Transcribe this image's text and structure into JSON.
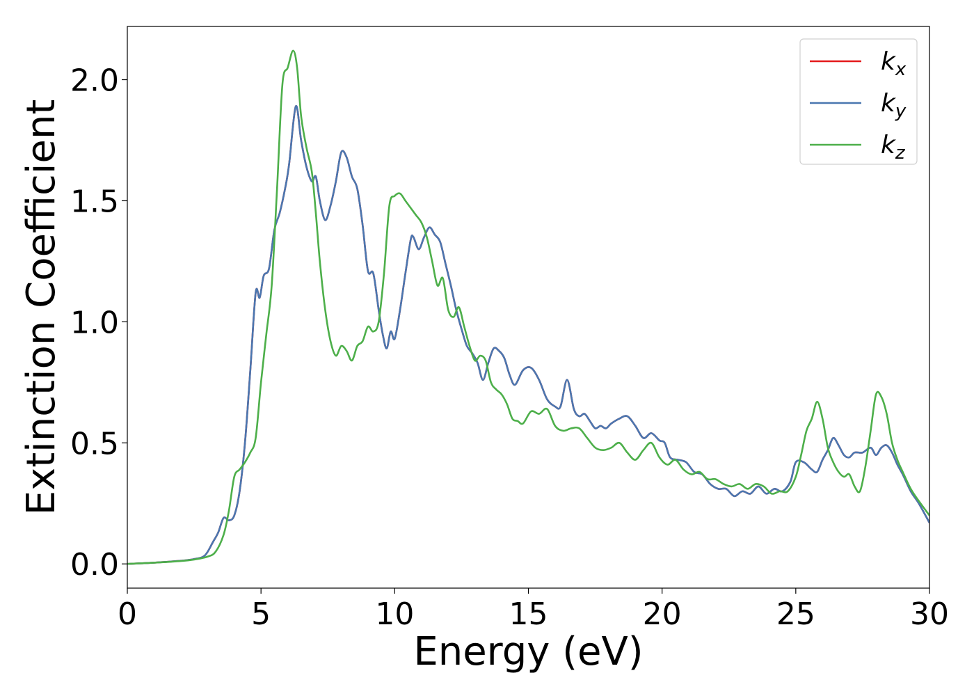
{
  "chart_data": {
    "type": "line",
    "xlabel": "Energy (eV)",
    "ylabel": "Extinction Coefficient",
    "xlim": [
      0,
      30
    ],
    "ylim": [
      -0.1,
      2.22
    ],
    "xticks": [
      0,
      5,
      10,
      15,
      20,
      25,
      30
    ],
    "xtick_labels": [
      "0",
      "5",
      "10",
      "15",
      "20",
      "25",
      "30"
    ],
    "yticks": [
      0.0,
      0.5,
      1.0,
      1.5,
      2.0
    ],
    "ytick_labels": [
      "0.0",
      "0.5",
      "1.0",
      "1.5",
      "2.0"
    ],
    "grid": false,
    "legend_position": "top-right",
    "series": [
      {
        "name": "k_x",
        "legend_main": "k",
        "legend_sub": "x",
        "color": "#e41a1c",
        "x": [
          0,
          1,
          2,
          2.5,
          2.9,
          3.2,
          3.4,
          3.6,
          3.8,
          4.0,
          4.2,
          4.4,
          4.6,
          4.8,
          4.95,
          5.1,
          5.3,
          5.5,
          5.7,
          5.9,
          6.05,
          6.3,
          6.5,
          6.7,
          6.9,
          7.05,
          7.2,
          7.4,
          7.6,
          7.8,
          8.0,
          8.2,
          8.4,
          8.6,
          8.8,
          9.0,
          9.2,
          9.4,
          9.55,
          9.7,
          9.85,
          10.0,
          10.2,
          10.4,
          10.6,
          10.7,
          10.9,
          11.1,
          11.3,
          11.5,
          11.7,
          11.9,
          12.1,
          12.3,
          12.5,
          12.7,
          12.9,
          13.1,
          13.3,
          13.5,
          13.7,
          13.9,
          14.1,
          14.3,
          14.5,
          14.8,
          15.1,
          15.4,
          15.7,
          16.0,
          16.2,
          16.45,
          16.7,
          16.9,
          17.1,
          17.3,
          17.5,
          17.7,
          17.9,
          18.1,
          18.4,
          18.7,
          19.0,
          19.3,
          19.6,
          19.9,
          20.1,
          20.3,
          20.6,
          20.9,
          21.2,
          21.5,
          21.8,
          22.1,
          22.4,
          22.7,
          23.0,
          23.3,
          23.6,
          23.9,
          24.2,
          24.5,
          24.8,
          25.0,
          25.3,
          25.6,
          25.8,
          26.0,
          26.2,
          26.4,
          26.6,
          26.8,
          27.0,
          27.2,
          27.5,
          27.8,
          28.0,
          28.2,
          28.4,
          28.6,
          28.8,
          29.0,
          29.3,
          29.6,
          30.0
        ],
        "y": [
          0.0,
          0.005,
          0.013,
          0.02,
          0.035,
          0.09,
          0.13,
          0.19,
          0.18,
          0.2,
          0.3,
          0.5,
          0.8,
          1.12,
          1.1,
          1.19,
          1.22,
          1.38,
          1.45,
          1.55,
          1.65,
          1.89,
          1.75,
          1.64,
          1.58,
          1.6,
          1.5,
          1.42,
          1.48,
          1.58,
          1.7,
          1.68,
          1.6,
          1.55,
          1.4,
          1.21,
          1.2,
          1.05,
          0.95,
          0.89,
          0.96,
          0.93,
          1.05,
          1.2,
          1.34,
          1.35,
          1.3,
          1.35,
          1.39,
          1.36,
          1.33,
          1.24,
          1.15,
          1.05,
          0.97,
          0.9,
          0.87,
          0.83,
          0.76,
          0.83,
          0.89,
          0.88,
          0.85,
          0.78,
          0.74,
          0.8,
          0.81,
          0.76,
          0.68,
          0.65,
          0.65,
          0.76,
          0.64,
          0.61,
          0.62,
          0.59,
          0.56,
          0.57,
          0.56,
          0.58,
          0.6,
          0.61,
          0.57,
          0.52,
          0.54,
          0.51,
          0.5,
          0.44,
          0.43,
          0.42,
          0.38,
          0.37,
          0.33,
          0.31,
          0.31,
          0.28,
          0.3,
          0.29,
          0.32,
          0.29,
          0.31,
          0.3,
          0.34,
          0.42,
          0.42,
          0.39,
          0.38,
          0.43,
          0.47,
          0.52,
          0.49,
          0.45,
          0.44,
          0.46,
          0.46,
          0.48,
          0.45,
          0.48,
          0.49,
          0.46,
          0.41,
          0.37,
          0.3,
          0.25,
          0.17
        ]
      },
      {
        "name": "k_y",
        "legend_main": "k",
        "legend_sub": "y",
        "color": "#4a77b0",
        "x": [
          0,
          1,
          2,
          2.5,
          2.9,
          3.2,
          3.4,
          3.6,
          3.8,
          4.0,
          4.2,
          4.4,
          4.6,
          4.8,
          4.95,
          5.1,
          5.3,
          5.5,
          5.7,
          5.9,
          6.05,
          6.3,
          6.5,
          6.7,
          6.9,
          7.05,
          7.2,
          7.4,
          7.6,
          7.8,
          8.0,
          8.2,
          8.4,
          8.6,
          8.8,
          9.0,
          9.2,
          9.4,
          9.55,
          9.7,
          9.85,
          10.0,
          10.2,
          10.4,
          10.6,
          10.7,
          10.9,
          11.1,
          11.3,
          11.5,
          11.7,
          11.9,
          12.1,
          12.3,
          12.5,
          12.7,
          12.9,
          13.1,
          13.3,
          13.5,
          13.7,
          13.9,
          14.1,
          14.3,
          14.5,
          14.8,
          15.1,
          15.4,
          15.7,
          16.0,
          16.2,
          16.45,
          16.7,
          16.9,
          17.1,
          17.3,
          17.5,
          17.7,
          17.9,
          18.1,
          18.4,
          18.7,
          19.0,
          19.3,
          19.6,
          19.9,
          20.1,
          20.3,
          20.6,
          20.9,
          21.2,
          21.5,
          21.8,
          22.1,
          22.4,
          22.7,
          23.0,
          23.3,
          23.6,
          23.9,
          24.2,
          24.5,
          24.8,
          25.0,
          25.3,
          25.6,
          25.8,
          26.0,
          26.2,
          26.4,
          26.6,
          26.8,
          27.0,
          27.2,
          27.5,
          27.8,
          28.0,
          28.2,
          28.4,
          28.6,
          28.8,
          29.0,
          29.3,
          29.6,
          30.0
        ],
        "y": [
          0.0,
          0.005,
          0.013,
          0.02,
          0.035,
          0.09,
          0.13,
          0.19,
          0.18,
          0.2,
          0.3,
          0.5,
          0.8,
          1.12,
          1.1,
          1.19,
          1.22,
          1.38,
          1.45,
          1.55,
          1.65,
          1.89,
          1.75,
          1.64,
          1.58,
          1.6,
          1.5,
          1.42,
          1.48,
          1.58,
          1.7,
          1.68,
          1.6,
          1.55,
          1.4,
          1.21,
          1.2,
          1.05,
          0.95,
          0.89,
          0.96,
          0.93,
          1.05,
          1.2,
          1.34,
          1.35,
          1.3,
          1.35,
          1.39,
          1.36,
          1.33,
          1.24,
          1.15,
          1.05,
          0.97,
          0.9,
          0.87,
          0.83,
          0.76,
          0.83,
          0.89,
          0.88,
          0.85,
          0.78,
          0.74,
          0.8,
          0.81,
          0.76,
          0.68,
          0.65,
          0.65,
          0.76,
          0.64,
          0.61,
          0.62,
          0.59,
          0.56,
          0.57,
          0.56,
          0.58,
          0.6,
          0.61,
          0.57,
          0.52,
          0.54,
          0.51,
          0.5,
          0.44,
          0.43,
          0.42,
          0.38,
          0.37,
          0.33,
          0.31,
          0.31,
          0.28,
          0.3,
          0.29,
          0.32,
          0.29,
          0.31,
          0.3,
          0.34,
          0.42,
          0.42,
          0.39,
          0.38,
          0.43,
          0.47,
          0.52,
          0.49,
          0.45,
          0.44,
          0.46,
          0.46,
          0.48,
          0.45,
          0.48,
          0.49,
          0.46,
          0.41,
          0.37,
          0.3,
          0.25,
          0.17
        ]
      },
      {
        "name": "k_z",
        "legend_main": "k",
        "legend_sub": "z",
        "color": "#4daf4a",
        "x": [
          0,
          1,
          2,
          2.5,
          3.0,
          3.3,
          3.6,
          3.8,
          4.0,
          4.2,
          4.4,
          4.6,
          4.8,
          5.0,
          5.2,
          5.4,
          5.6,
          5.8,
          6.0,
          6.2,
          6.35,
          6.5,
          6.7,
          6.9,
          7.05,
          7.2,
          7.4,
          7.6,
          7.8,
          8.0,
          8.2,
          8.4,
          8.6,
          8.8,
          9.0,
          9.2,
          9.4,
          9.6,
          9.8,
          10.0,
          10.2,
          10.4,
          10.6,
          10.8,
          11.0,
          11.2,
          11.4,
          11.6,
          11.8,
          12.0,
          12.2,
          12.4,
          12.6,
          12.8,
          13.0,
          13.2,
          13.4,
          13.6,
          13.8,
          14.0,
          14.2,
          14.4,
          14.6,
          14.8,
          15.1,
          15.4,
          15.7,
          16.0,
          16.3,
          16.6,
          16.9,
          17.2,
          17.5,
          17.8,
          18.1,
          18.4,
          18.7,
          19.0,
          19.3,
          19.6,
          19.9,
          20.2,
          20.5,
          20.8,
          21.1,
          21.4,
          21.7,
          22.0,
          22.3,
          22.6,
          22.9,
          23.2,
          23.5,
          23.8,
          24.1,
          24.4,
          24.7,
          25.0,
          25.2,
          25.4,
          25.6,
          25.8,
          26.0,
          26.2,
          26.4,
          26.6,
          26.8,
          27.0,
          27.2,
          27.4,
          27.6,
          27.8,
          28.0,
          28.2,
          28.4,
          28.6,
          28.8,
          29.0,
          29.3,
          29.6,
          30.0
        ],
        "y": [
          0.0,
          0.005,
          0.012,
          0.018,
          0.03,
          0.05,
          0.12,
          0.22,
          0.36,
          0.39,
          0.42,
          0.46,
          0.52,
          0.75,
          0.95,
          1.15,
          1.55,
          1.98,
          2.05,
          2.12,
          2.05,
          1.85,
          1.72,
          1.62,
          1.45,
          1.25,
          1.05,
          0.92,
          0.86,
          0.9,
          0.88,
          0.84,
          0.9,
          0.92,
          0.98,
          0.96,
          1.0,
          1.2,
          1.48,
          1.52,
          1.53,
          1.5,
          1.47,
          1.44,
          1.41,
          1.35,
          1.25,
          1.15,
          1.18,
          1.05,
          1.02,
          1.06,
          0.98,
          0.9,
          0.84,
          0.86,
          0.84,
          0.75,
          0.72,
          0.7,
          0.66,
          0.6,
          0.59,
          0.58,
          0.63,
          0.62,
          0.64,
          0.57,
          0.55,
          0.56,
          0.56,
          0.52,
          0.48,
          0.47,
          0.48,
          0.5,
          0.46,
          0.43,
          0.47,
          0.5,
          0.44,
          0.41,
          0.43,
          0.39,
          0.37,
          0.38,
          0.35,
          0.35,
          0.33,
          0.32,
          0.33,
          0.31,
          0.33,
          0.32,
          0.29,
          0.3,
          0.3,
          0.36,
          0.45,
          0.55,
          0.6,
          0.67,
          0.6,
          0.48,
          0.42,
          0.38,
          0.36,
          0.37,
          0.32,
          0.3,
          0.4,
          0.55,
          0.7,
          0.69,
          0.62,
          0.5,
          0.43,
          0.38,
          0.31,
          0.26,
          0.2
        ]
      }
    ]
  }
}
